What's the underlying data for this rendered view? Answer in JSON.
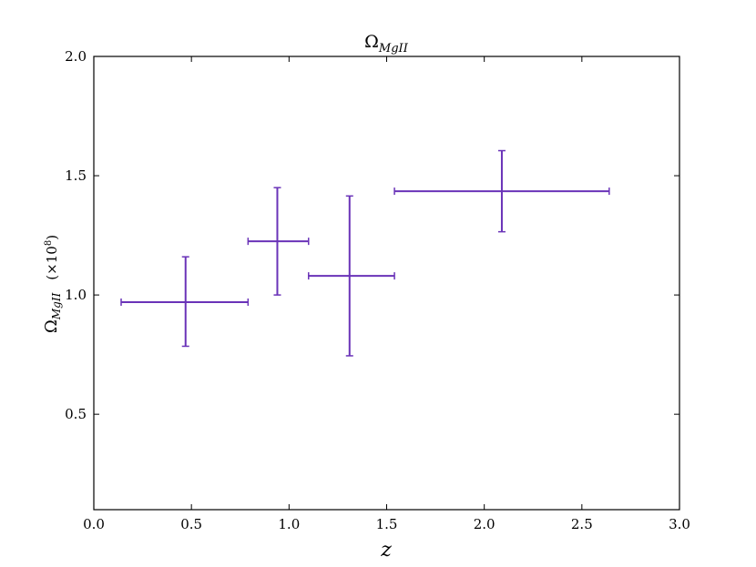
{
  "chart_data": {
    "type": "scatter",
    "title": {
      "base": "Ω",
      "sub": "MgII"
    },
    "xlabel": "z",
    "ylabel": {
      "base": "Ω",
      "sub": "MgII",
      "unit_prefix": "(×10",
      "unit_exp": "8",
      "unit_suffix": ")"
    },
    "xlim": [
      0.0,
      3.0
    ],
    "ylim": [
      0.1,
      2.0
    ],
    "xticks": [
      0.0,
      0.5,
      1.0,
      1.5,
      2.0,
      2.5,
      3.0
    ],
    "xtick_labels": [
      "0.0",
      "0.5",
      "1.0",
      "1.5",
      "2.0",
      "2.5",
      "3.0"
    ],
    "yticks": [
      0.5,
      1.0,
      1.5,
      2.0
    ],
    "ytick_labels": [
      "0.5",
      "1.0",
      "1.5",
      "2.0"
    ],
    "grid": false,
    "color": "#6a33b8",
    "points": [
      {
        "x": 0.47,
        "y": 0.97,
        "x_lo": 0.14,
        "x_hi": 0.79,
        "y_lo": 0.785,
        "y_hi": 1.16
      },
      {
        "x": 0.94,
        "y": 1.225,
        "x_lo": 0.79,
        "x_hi": 1.1,
        "y_lo": 1.0,
        "y_hi": 1.45
      },
      {
        "x": 1.31,
        "y": 1.08,
        "x_lo": 1.1,
        "x_hi": 1.54,
        "y_lo": 0.745,
        "y_hi": 1.415
      },
      {
        "x": 2.09,
        "y": 1.435,
        "x_lo": 1.54,
        "x_hi": 2.64,
        "y_lo": 1.265,
        "y_hi": 1.605
      }
    ]
  }
}
